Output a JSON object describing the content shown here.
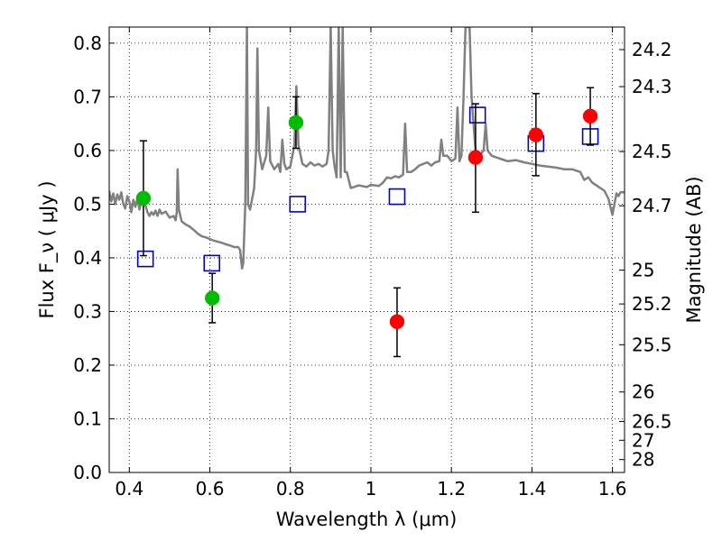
{
  "chart_data": {
    "type": "scatter",
    "xlabel": "Wavelength  λ (μm)",
    "ylabel": "Flux  F_ν  ( μJy )",
    "ylabel_right": "Magnitude (AB)",
    "xlim": [
      0.35,
      1.63
    ],
    "ylim": [
      0.0,
      0.83
    ],
    "grid": true,
    "x_ticks": [
      0.4,
      0.6,
      0.8,
      1.0,
      1.2,
      1.4,
      1.6
    ],
    "x_tick_labels": [
      "0.4",
      "0.6",
      "0.8",
      "1",
      "1.2",
      "1.4",
      "1.6"
    ],
    "y_ticks": [
      0.0,
      0.1,
      0.2,
      0.3,
      0.4,
      0.5,
      0.6,
      0.7,
      0.8
    ],
    "y_tick_labels": [
      "0.0",
      "0.1",
      "0.2",
      "0.3",
      "0.4",
      "0.5",
      "0.6",
      "0.7",
      "0.8"
    ],
    "mag_ticks": [
      {
        "label": "24.2",
        "flux": 0.788
      },
      {
        "label": "24.3",
        "flux": 0.719
      },
      {
        "label": "24.5",
        "flux": 0.598
      },
      {
        "label": "24.7",
        "flux": 0.497
      },
      {
        "label": "25",
        "flux": 0.377
      },
      {
        "label": "25.2",
        "flux": 0.314
      },
      {
        "label": "25.5",
        "flux": 0.238
      },
      {
        "label": "26",
        "flux": 0.15
      },
      {
        "label": "26.5",
        "flux": 0.095
      },
      {
        "label": "27",
        "flux": 0.06
      },
      {
        "label": "28",
        "flux": 0.024
      }
    ],
    "series": [
      {
        "color": "#00bb00",
        "marker": "filled-circle",
        "points": [
          {
            "x": 0.435,
            "y": 0.511,
            "yerr_low": 0.404,
            "yerr_high": 0.618
          },
          {
            "x": 0.606,
            "y": 0.325,
            "yerr_low": 0.279,
            "yerr_high": 0.371
          },
          {
            "x": 0.814,
            "y": 0.652,
            "yerr_low": 0.604,
            "yerr_high": 0.7
          }
        ]
      },
      {
        "color": "#ff0000",
        "marker": "filled-circle",
        "points": [
          {
            "x": 1.065,
            "y": 0.281,
            "yerr_low": 0.216,
            "yerr_high": 0.344
          },
          {
            "x": 1.26,
            "y": 0.587,
            "yerr_low": 0.485,
            "yerr_high": 0.687
          },
          {
            "x": 1.41,
            "y": 0.629,
            "yerr_low": 0.553,
            "yerr_high": 0.706
          },
          {
            "x": 1.545,
            "y": 0.664,
            "yerr_low": 0.61,
            "yerr_high": 0.717
          }
        ]
      },
      {
        "color": "#0000cc",
        "marker": "open-square",
        "points": [
          {
            "x": 0.44,
            "y": 0.398
          },
          {
            "x": 0.605,
            "y": 0.39
          },
          {
            "x": 0.818,
            "y": 0.5
          },
          {
            "x": 1.065,
            "y": 0.514
          },
          {
            "x": 1.265,
            "y": 0.666
          },
          {
            "x": 1.41,
            "y": 0.613
          },
          {
            "x": 1.545,
            "y": 0.626
          }
        ]
      }
    ],
    "template_spectrum": {
      "color": "#808080",
      "points": [
        [
          0.35,
          0.525
        ],
        [
          0.355,
          0.505
        ],
        [
          0.36,
          0.52
        ],
        [
          0.365,
          0.5
        ],
        [
          0.37,
          0.518
        ],
        [
          0.375,
          0.508
        ],
        [
          0.38,
          0.522
        ],
        [
          0.385,
          0.5
        ],
        [
          0.39,
          0.492
        ],
        [
          0.395,
          0.515
        ],
        [
          0.4,
          0.505
        ],
        [
          0.405,
          0.485
        ],
        [
          0.41,
          0.508
        ],
        [
          0.415,
          0.495
        ],
        [
          0.42,
          0.51
        ],
        [
          0.425,
          0.49
        ],
        [
          0.43,
          0.505
        ],
        [
          0.435,
          0.5
        ],
        [
          0.44,
          0.498
        ],
        [
          0.445,
          0.485
        ],
        [
          0.45,
          0.478
        ],
        [
          0.455,
          0.485
        ],
        [
          0.46,
          0.48
        ],
        [
          0.465,
          0.488
        ],
        [
          0.47,
          0.478
        ],
        [
          0.475,
          0.49
        ],
        [
          0.48,
          0.482
        ],
        [
          0.49,
          0.486
        ],
        [
          0.5,
          0.475
        ],
        [
          0.51,
          0.478
        ],
        [
          0.515,
          0.47
        ],
        [
          0.518,
          0.485
        ],
        [
          0.52,
          0.565
        ],
        [
          0.523,
          0.49
        ],
        [
          0.53,
          0.468
        ],
        [
          0.54,
          0.462
        ],
        [
          0.55,
          0.458
        ],
        [
          0.56,
          0.452
        ],
        [
          0.57,
          0.445
        ],
        [
          0.58,
          0.44
        ],
        [
          0.59,
          0.438
        ],
        [
          0.6,
          0.435
        ],
        [
          0.61,
          0.432
        ],
        [
          0.62,
          0.43
        ],
        [
          0.63,
          0.428
        ],
        [
          0.64,
          0.425
        ],
        [
          0.65,
          0.423
        ],
        [
          0.66,
          0.42
        ],
        [
          0.67,
          0.42
        ],
        [
          0.675,
          0.415
        ],
        [
          0.68,
          0.38
        ],
        [
          0.683,
          0.39
        ],
        [
          0.688,
          0.5
        ],
        [
          0.692,
          0.83
        ],
        [
          0.695,
          0.5
        ],
        [
          0.7,
          0.49
        ],
        [
          0.71,
          0.53
        ],
        [
          0.715,
          0.6
        ],
        [
          0.718,
          0.79
        ],
        [
          0.722,
          0.6
        ],
        [
          0.73,
          0.565
        ],
        [
          0.74,
          0.59
        ],
        [
          0.745,
          0.68
        ],
        [
          0.75,
          0.58
        ],
        [
          0.76,
          0.565
        ],
        [
          0.77,
          0.575
        ],
        [
          0.775,
          0.56
        ],
        [
          0.78,
          0.62
        ],
        [
          0.785,
          0.575
        ],
        [
          0.79,
          0.565
        ],
        [
          0.8,
          0.57
        ],
        [
          0.81,
          0.61
        ],
        [
          0.815,
          0.72
        ],
        [
          0.82,
          0.61
        ],
        [
          0.83,
          0.575
        ],
        [
          0.84,
          0.57
        ],
        [
          0.85,
          0.578
        ],
        [
          0.86,
          0.572
        ],
        [
          0.87,
          0.575
        ],
        [
          0.88,
          0.57
        ],
        [
          0.89,
          0.575
        ],
        [
          0.895,
          0.6
        ],
        [
          0.9,
          0.83
        ],
        [
          0.905,
          0.6
        ],
        [
          0.91,
          0.57
        ],
        [
          0.915,
          0.55
        ],
        [
          0.92,
          0.83
        ],
        [
          0.925,
          0.55
        ],
        [
          0.93,
          0.83
        ],
        [
          0.935,
          0.56
        ],
        [
          0.94,
          0.56
        ],
        [
          0.95,
          0.53
        ],
        [
          0.97,
          0.535
        ],
        [
          0.99,
          0.532
        ],
        [
          1.0,
          0.536
        ],
        [
          1.02,
          0.534
        ],
        [
          1.03,
          0.54
        ],
        [
          1.04,
          0.55
        ],
        [
          1.05,
          0.548
        ],
        [
          1.06,
          0.552
        ],
        [
          1.07,
          0.55
        ],
        [
          1.08,
          0.555
        ],
        [
          1.085,
          0.65
        ],
        [
          1.09,
          0.56
        ],
        [
          1.1,
          0.56
        ],
        [
          1.11,
          0.565
        ],
        [
          1.12,
          0.572
        ],
        [
          1.13,
          0.575
        ],
        [
          1.14,
          0.578
        ],
        [
          1.15,
          0.572
        ],
        [
          1.16,
          0.578
        ],
        [
          1.17,
          0.58
        ],
        [
          1.175,
          0.62
        ],
        [
          1.18,
          0.59
        ],
        [
          1.19,
          0.59
        ],
        [
          1.2,
          0.58
        ],
        [
          1.21,
          0.585
        ],
        [
          1.215,
          0.68
        ],
        [
          1.22,
          0.58
        ],
        [
          1.225,
          0.59
        ],
        [
          1.23,
          0.7
        ],
        [
          1.235,
          0.83
        ],
        [
          1.245,
          0.83
        ],
        [
          1.25,
          0.7
        ],
        [
          1.26,
          0.6
        ],
        [
          1.27,
          0.59
        ],
        [
          1.28,
          0.6
        ],
        [
          1.285,
          0.65
        ],
        [
          1.29,
          0.6
        ],
        [
          1.3,
          0.59
        ],
        [
          1.32,
          0.585
        ],
        [
          1.34,
          0.58
        ],
        [
          1.36,
          0.582
        ],
        [
          1.38,
          0.578
        ],
        [
          1.4,
          0.575
        ],
        [
          1.42,
          0.572
        ],
        [
          1.44,
          0.57
        ],
        [
          1.46,
          0.568
        ],
        [
          1.48,
          0.565
        ],
        [
          1.5,
          0.565
        ],
        [
          1.52,
          0.56
        ],
        [
          1.53,
          0.545
        ],
        [
          1.54,
          0.55
        ],
        [
          1.55,
          0.54
        ],
        [
          1.56,
          0.535
        ],
        [
          1.57,
          0.53
        ],
        [
          1.58,
          0.525
        ],
        [
          1.59,
          0.51
        ],
        [
          1.6,
          0.48
        ],
        [
          1.605,
          0.5
        ],
        [
          1.61,
          0.52
        ],
        [
          1.615,
          0.515
        ],
        [
          1.62,
          0.522
        ],
        [
          1.63,
          0.522
        ]
      ]
    }
  }
}
